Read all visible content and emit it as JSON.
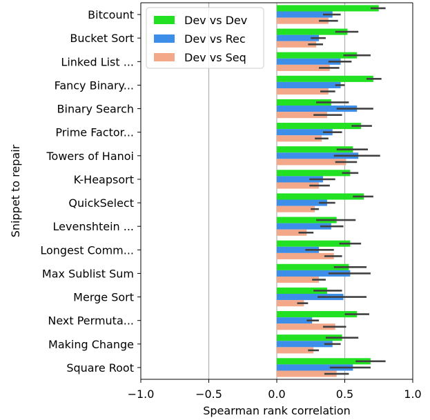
{
  "chart_data": {
    "type": "bar",
    "orientation": "horizontal",
    "categories": [
      "Bitcount",
      "Bucket Sort",
      "Linked List ...",
      "Fancy Binary...",
      "Binary Search",
      "Prime Factor...",
      "Towers of Hanoi",
      "K-Heapsort",
      "QuickSelect",
      "Levenshtein ...",
      "Longest Comm...",
      "Max Sublist Sum",
      "Merge Sort",
      "Next Permuta...",
      "Making Change",
      "Square Root"
    ],
    "series": [
      {
        "name": "Dev vs Dev",
        "color": "#22e022",
        "values": [
          0.75,
          0.52,
          0.59,
          0.71,
          0.4,
          0.62,
          0.56,
          0.54,
          0.64,
          0.44,
          0.54,
          0.53,
          0.37,
          0.59,
          0.48,
          0.69
        ],
        "error": [
          [
            0.69,
            0.8
          ],
          [
            0.43,
            0.6
          ],
          [
            0.49,
            0.69
          ],
          [
            0.66,
            0.77
          ],
          [
            0.29,
            0.53
          ],
          [
            0.55,
            0.7
          ],
          [
            0.44,
            0.67
          ],
          [
            0.48,
            0.6
          ],
          [
            0.56,
            0.71
          ],
          [
            0.29,
            0.58
          ],
          [
            0.46,
            0.62
          ],
          [
            0.42,
            0.66
          ],
          [
            0.27,
            0.48
          ],
          [
            0.5,
            0.68
          ],
          [
            0.36,
            0.6
          ],
          [
            0.58,
            0.8
          ]
        ]
      },
      {
        "name": "Dev vs Rec",
        "color": "#3d8ee8",
        "values": [
          0.41,
          0.31,
          0.47,
          0.47,
          0.59,
          0.41,
          0.6,
          0.34,
          0.37,
          0.4,
          0.31,
          0.54,
          0.49,
          0.26,
          0.41,
          0.56
        ],
        "error": [
          [
            0.34,
            0.47
          ],
          [
            0.25,
            0.36
          ],
          [
            0.38,
            0.55
          ],
          [
            0.43,
            0.5
          ],
          [
            0.44,
            0.71
          ],
          [
            0.34,
            0.48
          ],
          [
            0.42,
            0.76
          ],
          [
            0.24,
            0.43
          ],
          [
            0.31,
            0.43
          ],
          [
            0.32,
            0.49
          ],
          [
            0.21,
            0.42
          ],
          [
            0.38,
            0.69
          ],
          [
            0.3,
            0.66
          ],
          [
            0.22,
            0.31
          ],
          [
            0.35,
            0.47
          ],
          [
            0.39,
            0.69
          ]
        ]
      },
      {
        "name": "Dev vs Seq",
        "color": "#f4a88a",
        "values": [
          0.38,
          0.29,
          0.39,
          0.38,
          0.37,
          0.33,
          0.51,
          0.31,
          0.28,
          0.22,
          0.42,
          0.31,
          0.2,
          0.43,
          0.27,
          0.44
        ],
        "error": [
          [
            0.31,
            0.45
          ],
          [
            0.23,
            0.34
          ],
          [
            0.31,
            0.46
          ],
          [
            0.32,
            0.43
          ],
          [
            0.27,
            0.48
          ],
          [
            0.28,
            0.38
          ],
          [
            0.43,
            0.59
          ],
          [
            0.24,
            0.39
          ],
          [
            0.25,
            0.31
          ],
          [
            0.16,
            0.27
          ],
          [
            0.35,
            0.48
          ],
          [
            0.26,
            0.36
          ],
          [
            0.15,
            0.23
          ],
          [
            0.34,
            0.51
          ],
          [
            0.23,
            0.31
          ],
          [
            0.35,
            0.53
          ]
        ]
      }
    ],
    "xlabel": "Spearman rank correlation",
    "ylabel": "Snippet to repair",
    "xlim": [
      -1.0,
      1.0
    ],
    "xticks": [
      "−1.0",
      "−0.5",
      "0.0",
      "0.5",
      "1.0"
    ],
    "xtick_values": [
      -1.0,
      -0.5,
      0.0,
      0.5,
      1.0
    ],
    "reference_lines": [
      -0.5,
      0.0,
      0.5
    ],
    "errorbar_color": "#404040",
    "grid": false,
    "legend_position": "upper-left"
  }
}
